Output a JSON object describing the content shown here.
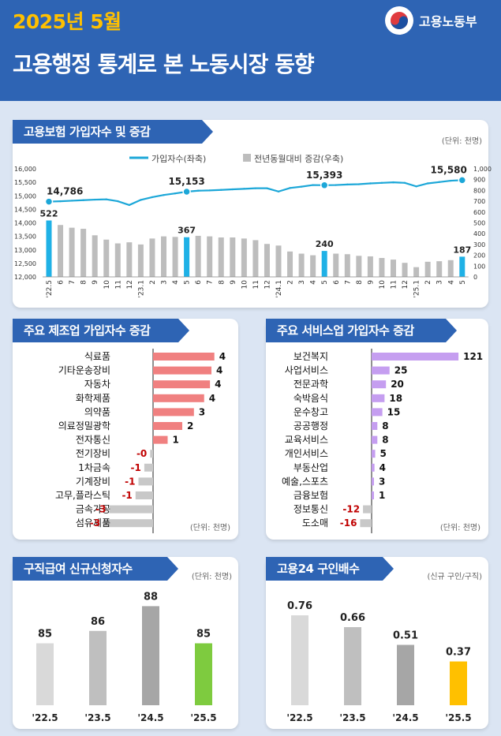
{
  "header": {
    "year": "2025년 5월",
    "title": "고용행정 통계로 본 노동시장 동향",
    "ministry": "고용노동부",
    "logo_colors": {
      "red": "#e03a3e",
      "blue": "#1d4fa0"
    }
  },
  "colors": {
    "accent": "#2e64b4",
    "year": "#ffc000",
    "line": "#1ca7d8",
    "bar_gray": "#bdbdbd",
    "highlight_blue": "#1fb1e6",
    "mfg_bar": "#f08080",
    "svc_bar": "#c59ef0",
    "neg_bar": "#c8c8c8",
    "neg_text": "#c00000",
    "green": "#7ecb3f",
    "yellow": "#ffc000"
  },
  "insurance": {
    "title": "고용보험 가입자수 및 증감",
    "unit": "(단위: 천명)",
    "legend_line": "가입자수(좌축)",
    "legend_bar": "전년동월대비 증감(우축)"
  },
  "manufacturing": {
    "title": "주요 제조업 가입자수 증감",
    "unit": "(단위: 천명)"
  },
  "services": {
    "title": "주요 서비스업 가입자수 증감",
    "unit": "(단위: 천명)"
  },
  "claims": {
    "title": "구직급여 신규신청자수",
    "unit": "(단위: 천명)"
  },
  "jobs24": {
    "title": "고용24 구인배수",
    "unit": "(신규 구인/구직)"
  },
  "chart_data": [
    {
      "type": "line+bar",
      "title": "고용보험 가입자수 및 증감",
      "categories": [
        "'22.5",
        "6",
        "7",
        "8",
        "9",
        "10",
        "11",
        "12",
        "'23.1",
        "2",
        "3",
        "4",
        "5",
        "6",
        "7",
        "8",
        "9",
        "10",
        "11",
        "12",
        "'24.1",
        "2",
        "3",
        "4",
        "5",
        "6",
        "7",
        "8",
        "9",
        "10",
        "11",
        "12",
        "'25.1",
        "2",
        "3",
        "4",
        "5"
      ],
      "series": [
        {
          "name": "가입자수(좌축)",
          "axis": "left",
          "type": "line",
          "values": [
            14786,
            14800,
            14820,
            14840,
            14860,
            14870,
            14800,
            14660,
            14850,
            14950,
            15030,
            15090,
            15153,
            15190,
            15200,
            15220,
            15240,
            15260,
            15280,
            15280,
            15160,
            15290,
            15340,
            15400,
            15393,
            15400,
            15420,
            15430,
            15460,
            15480,
            15500,
            15480,
            15350,
            15460,
            15510,
            15560,
            15580
          ],
          "labeled": {
            "0": 14786,
            "12": 15153,
            "24": 15393,
            "36": 15580
          }
        },
        {
          "name": "전년동월대비 증감(우축)",
          "axis": "right",
          "type": "bar",
          "values": [
            522,
            480,
            455,
            445,
            385,
            345,
            310,
            320,
            300,
            355,
            375,
            370,
            367,
            380,
            375,
            365,
            365,
            355,
            340,
            305,
            290,
            235,
            215,
            200,
            240,
            215,
            210,
            195,
            190,
            175,
            160,
            130,
            90,
            140,
            145,
            155,
            187
          ],
          "labeled": {
            "0": 522,
            "12": 367,
            "24": 240,
            "36": 187
          },
          "highlighted": [
            0,
            12,
            24,
            36
          ]
        }
      ],
      "y_left": {
        "min": 12000,
        "max": 16000,
        "ticks": [
          "16,000",
          "15,500",
          "15,000",
          "14,500",
          "14,000",
          "13,500",
          "13,000",
          "12,500",
          "12,000"
        ]
      },
      "y_right": {
        "min": 0,
        "max": 1000,
        "ticks": [
          "1,000",
          "900",
          "800",
          "700",
          "600",
          "500",
          "400",
          "300",
          "200",
          "100",
          "0"
        ]
      },
      "point_labels": [
        "14,786",
        "15,153",
        "15,393",
        "15,580"
      ],
      "bar_labels": [
        "522",
        "367",
        "240",
        "187"
      ]
    },
    {
      "type": "bar",
      "orientation": "horizontal",
      "title": "주요 제조업 가입자수 증감",
      "categories": [
        "식료품",
        "기타운송장비",
        "자동차",
        "화학제품",
        "의약품",
        "의료정밀광학",
        "전자통신",
        "전기장비",
        "1차금속",
        "기계장비",
        "고무,플라스틱",
        "금속가공",
        "섬유제품"
      ],
      "values": [
        4.2,
        4.0,
        3.9,
        3.5,
        2.8,
        2.0,
        1.0,
        -0.2,
        -0.6,
        -1.0,
        -1.2,
        -3.0,
        -3.4
      ],
      "value_labels": [
        "4",
        "4",
        "4",
        "4",
        "3",
        "2",
        "1",
        "-0",
        "-1",
        "-1",
        "-1",
        "-3",
        "-3"
      ]
    },
    {
      "type": "bar",
      "orientation": "horizontal",
      "title": "주요 서비스업 가입자수 증감",
      "categories": [
        "보건복지",
        "사업서비스",
        "전문과학",
        "숙박음식",
        "운수창고",
        "공공행정",
        "교육서비스",
        "개인서비스",
        "부동산업",
        "예술,스포츠",
        "금융보험",
        "정보통신",
        "도소매"
      ],
      "values": [
        121,
        25,
        20,
        18,
        15,
        8,
        8,
        5,
        4,
        3,
        1,
        -12,
        -16
      ],
      "value_labels": [
        "121",
        "25",
        "20",
        "18",
        "15",
        "8",
        "8",
        "5",
        "4",
        "3",
        "1",
        "-12",
        "-16"
      ]
    },
    {
      "type": "bar",
      "title": "구직급여 신규신청자수",
      "categories": [
        "'22.5",
        "'23.5",
        "'24.5",
        "'25.5"
      ],
      "values": [
        85,
        86,
        88,
        85
      ],
      "value_labels": [
        "85",
        "86",
        "88",
        "85"
      ]
    },
    {
      "type": "bar",
      "title": "고용24 구인배수",
      "categories": [
        "'22.5",
        "'23.5",
        "'24.5",
        "'25.5"
      ],
      "values": [
        0.76,
        0.66,
        0.51,
        0.37
      ],
      "value_labels": [
        "0.76",
        "0.66",
        "0.51",
        "0.37"
      ]
    }
  ]
}
